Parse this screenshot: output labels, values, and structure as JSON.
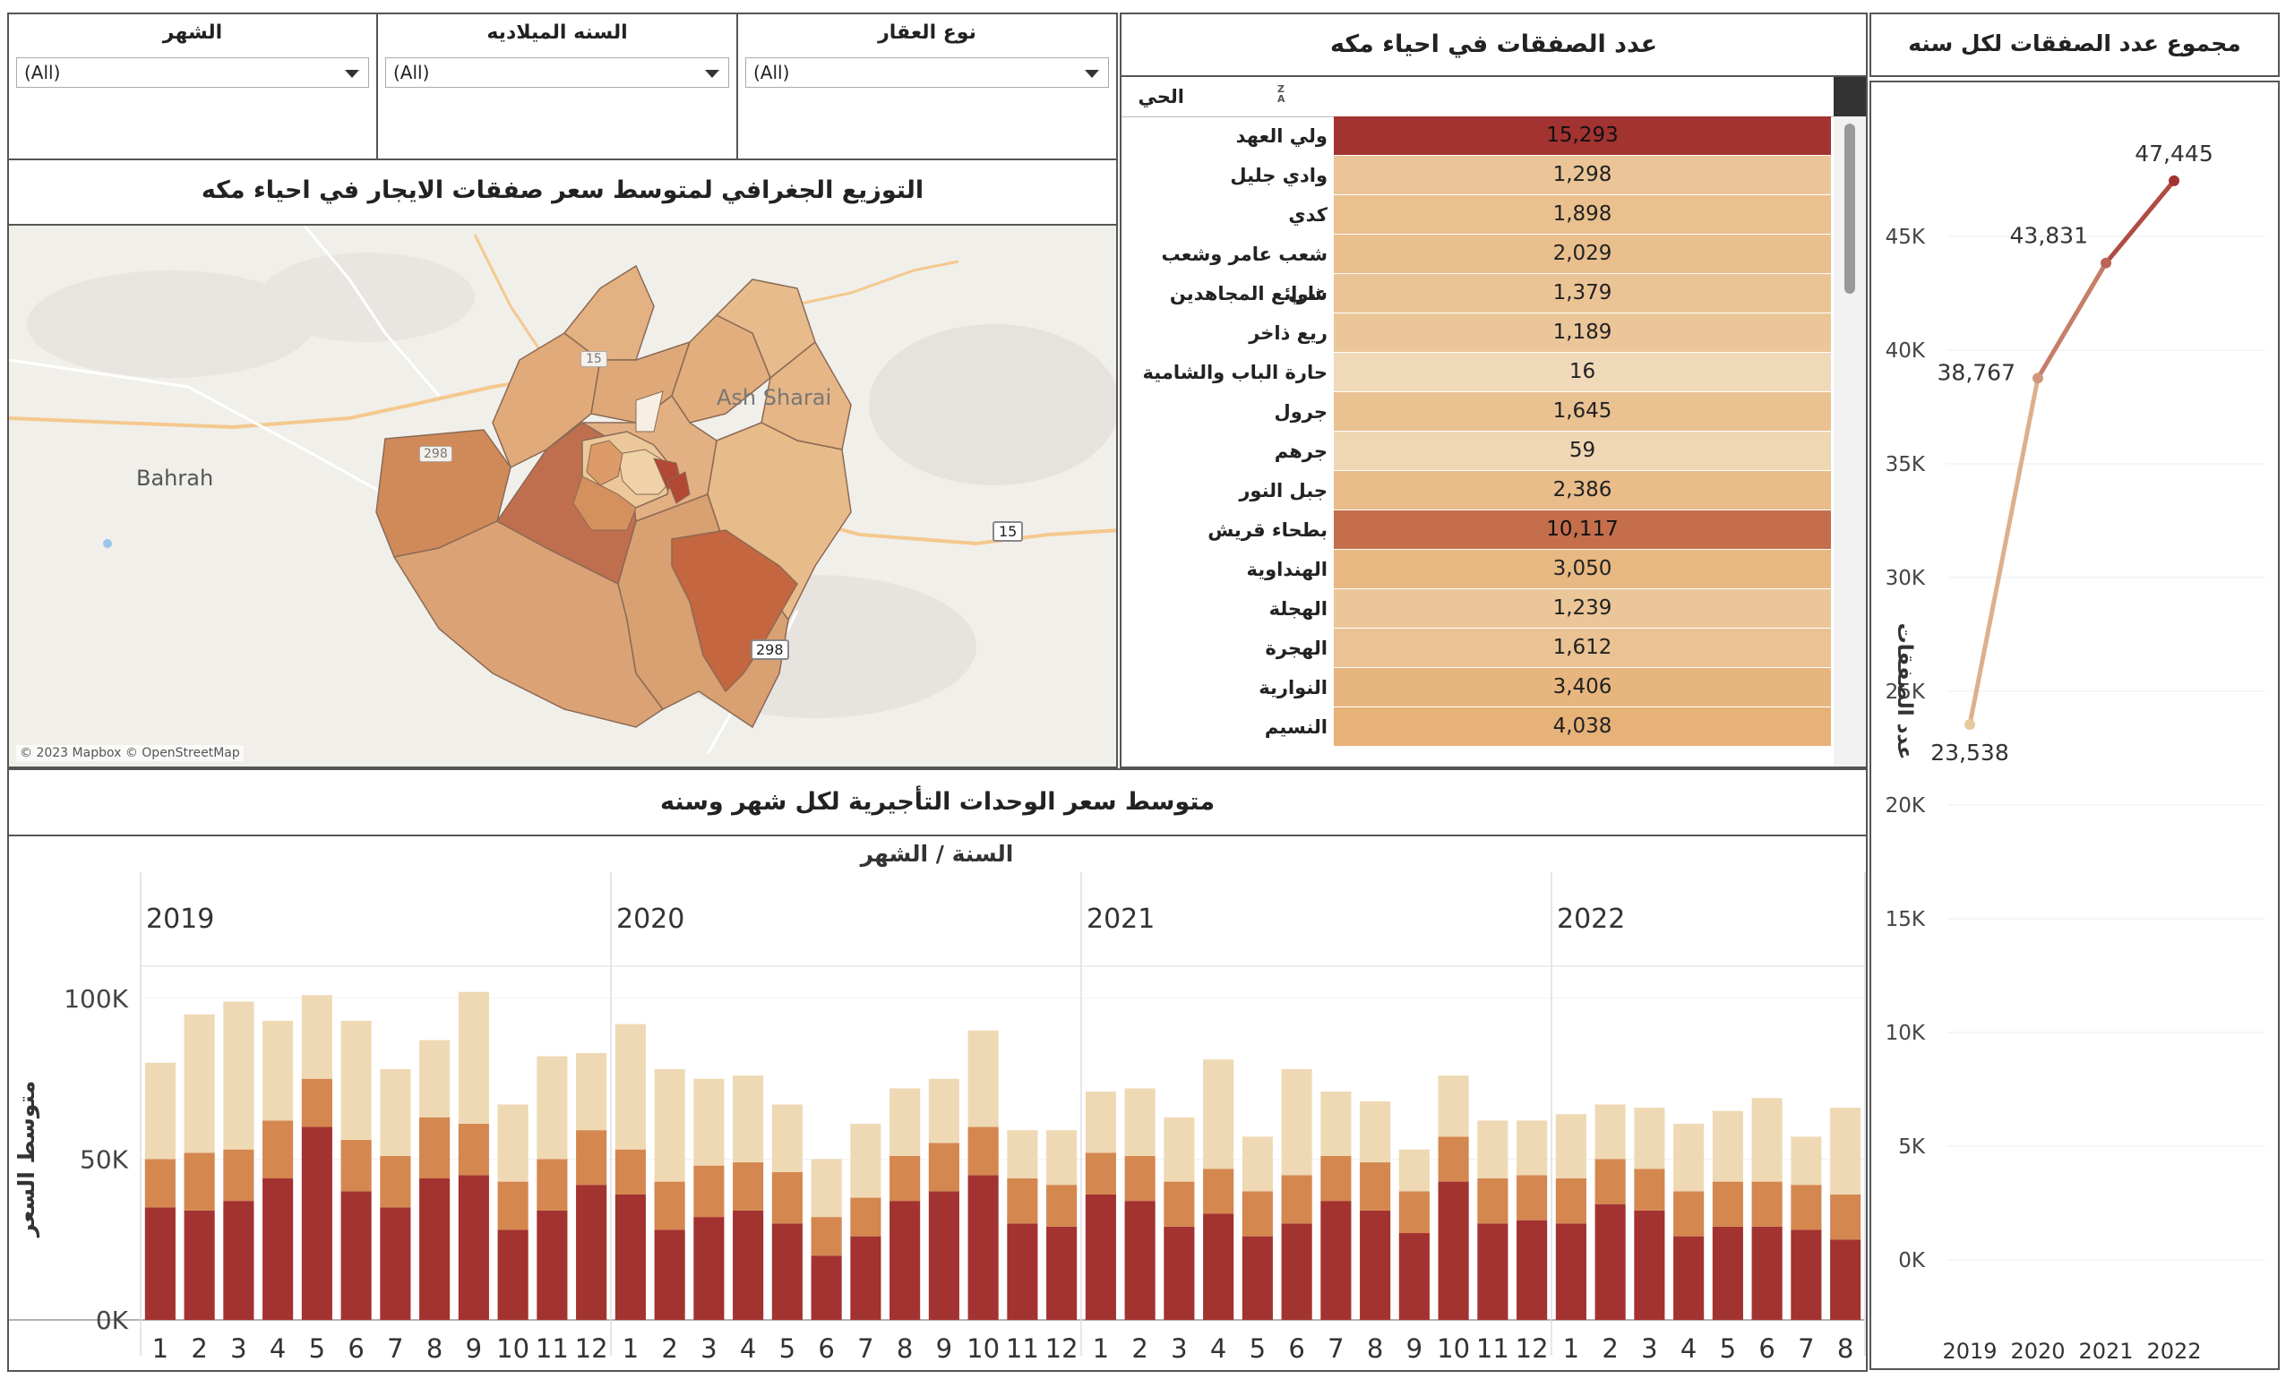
{
  "filters": [
    {
      "title": "الشهر",
      "value": "(All)"
    },
    {
      "title": "السنه الميلاديه",
      "value": "(All)"
    },
    {
      "title": "نوع العقار",
      "value": "(All)"
    }
  ],
  "map_panel": {
    "title": "التوزيع الجغرافي لمتوسط سعر صفقات الايجار في احياء مكه",
    "labels": {
      "bahrah": "Bahrah",
      "ash_sharai": "Ash Sharai",
      "road_15a": "15",
      "road_15b": "15",
      "road_298a": "298",
      "road_298b": "298"
    },
    "attribution": "© 2023 Mapbox © OpenStreetMap"
  },
  "neighborhood_table": {
    "title": "عدد الصفقات في احياء مكه",
    "column_header": "الحي",
    "sort_icon_label": "Z A",
    "colors": {
      "max": "#a23330",
      "mid": "#c96d46",
      "low": "#f0d8b4"
    },
    "rows": [
      {
        "name": "ولي العهد",
        "value": "15,293",
        "num": 15293
      },
      {
        "name": "وادي جليل",
        "value": "1,298",
        "num": 1298
      },
      {
        "name": "كدي",
        "value": "1,898",
        "num": 1898
      },
      {
        "name": "شعب عامر وشعب علي",
        "value": "2,029",
        "num": 2029
      },
      {
        "name": "شرائع المجاهدين",
        "value": "1,379",
        "num": 1379
      },
      {
        "name": "ريع ذاخر",
        "value": "1,189",
        "num": 1189
      },
      {
        "name": "حارة الباب والشامية",
        "value": "16",
        "num": 16
      },
      {
        "name": "جرول",
        "value": "1,645",
        "num": 1645
      },
      {
        "name": "جرهم",
        "value": "59",
        "num": 59
      },
      {
        "name": "جبل النور",
        "value": "2,386",
        "num": 2386
      },
      {
        "name": "بطحاء قريش",
        "value": "10,117",
        "num": 10117
      },
      {
        "name": "الهنداوية",
        "value": "3,050",
        "num": 3050
      },
      {
        "name": "الهجلة",
        "value": "1,239",
        "num": 1239
      },
      {
        "name": "الهجرة",
        "value": "1,612",
        "num": 1612
      },
      {
        "name": "النوارية",
        "value": "3,406",
        "num": 3406
      },
      {
        "name": "النسيم",
        "value": "4,038",
        "num": 4038
      }
    ]
  },
  "line_panel": {
    "title": "مجموع عدد الصفقات لكل سنه"
  },
  "bar_panel": {
    "title": "متوسط سعر الوحدات التأجيرية لكل شهر وسنه"
  },
  "chart_data": [
    {
      "type": "line",
      "title": "مجموع عدد الصفقات لكل سنه",
      "x": [
        "2019",
        "2020",
        "2021",
        "2022"
      ],
      "y": [
        23538,
        38767,
        43831,
        47445
      ],
      "point_labels": [
        "23,538",
        "38,767",
        "43,831",
        "47,445"
      ],
      "ylabel": "عدد الصفقات",
      "ylim": [
        0,
        50000
      ],
      "yticks": [
        "0K",
        "5K",
        "10K",
        "15K",
        "20K",
        "25K",
        "30K",
        "35K",
        "40K",
        "45K"
      ],
      "colors": {
        "start": "#e8c9a0",
        "end": "#a23330"
      },
      "grid": true
    },
    {
      "type": "bar",
      "stacked": true,
      "title": "متوسط سعر الوحدات التأجيرية لكل شهر وسنه",
      "header": "السنة  /  الشهر",
      "ylabel": "متوسط السعر",
      "ylim": [
        0,
        110000
      ],
      "yticks": [
        "0K",
        "50K",
        "100K"
      ],
      "years": [
        {
          "year": "2019",
          "months": [
            "1",
            "2",
            "3",
            "4",
            "5",
            "6",
            "7",
            "8",
            "9",
            "10",
            "11",
            "12"
          ]
        },
        {
          "year": "2020",
          "months": [
            "1",
            "2",
            "3",
            "4",
            "5",
            "6",
            "7",
            "8",
            "9",
            "10",
            "11",
            "12"
          ]
        },
        {
          "year": "2021",
          "months": [
            "1",
            "2",
            "3",
            "4",
            "5",
            "6",
            "7",
            "8",
            "9",
            "10",
            "11",
            "12"
          ]
        },
        {
          "year": "2022",
          "months": [
            "1",
            "2",
            "3",
            "4",
            "5",
            "6",
            "7",
            "8"
          ]
        }
      ],
      "series": [
        {
          "color": "#a23330",
          "values": [
            35000,
            34000,
            37000,
            44000,
            60000,
            40000,
            35000,
            44000,
            45000,
            28000,
            34000,
            42000,
            39000,
            28000,
            32000,
            34000,
            30000,
            20000,
            26000,
            37000,
            40000,
            45000,
            30000,
            29000,
            39000,
            37000,
            29000,
            33000,
            26000,
            30000,
            37000,
            34000,
            27000,
            43000,
            30000,
            31000,
            30000,
            36000,
            34000,
            26000,
            29000,
            29000,
            28000,
            25000
          ]
        },
        {
          "color": "#d4874f",
          "values": [
            15000,
            18000,
            16000,
            18000,
            15000,
            16000,
            16000,
            19000,
            16000,
            15000,
            16000,
            17000,
            14000,
            15000,
            16000,
            15000,
            16000,
            12000,
            12000,
            14000,
            15000,
            15000,
            14000,
            13000,
            13000,
            14000,
            14000,
            14000,
            14000,
            15000,
            14000,
            15000,
            13000,
            14000,
            14000,
            14000,
            14000,
            14000,
            13000,
            14000,
            14000,
            14000,
            14000,
            14000
          ]
        },
        {
          "color": "#efd9b5",
          "values": [
            30000,
            43000,
            46000,
            31000,
            26000,
            37000,
            27000,
            24000,
            41000,
            24000,
            32000,
            24000,
            39000,
            35000,
            27000,
            27000,
            21000,
            18000,
            23000,
            21000,
            20000,
            30000,
            15000,
            17000,
            19000,
            21000,
            20000,
            34000,
            17000,
            33000,
            20000,
            19000,
            13000,
            19000,
            18000,
            17000,
            20000,
            17000,
            19000,
            21000,
            22000,
            26000,
            15000,
            27000
          ]
        }
      ]
    }
  ]
}
